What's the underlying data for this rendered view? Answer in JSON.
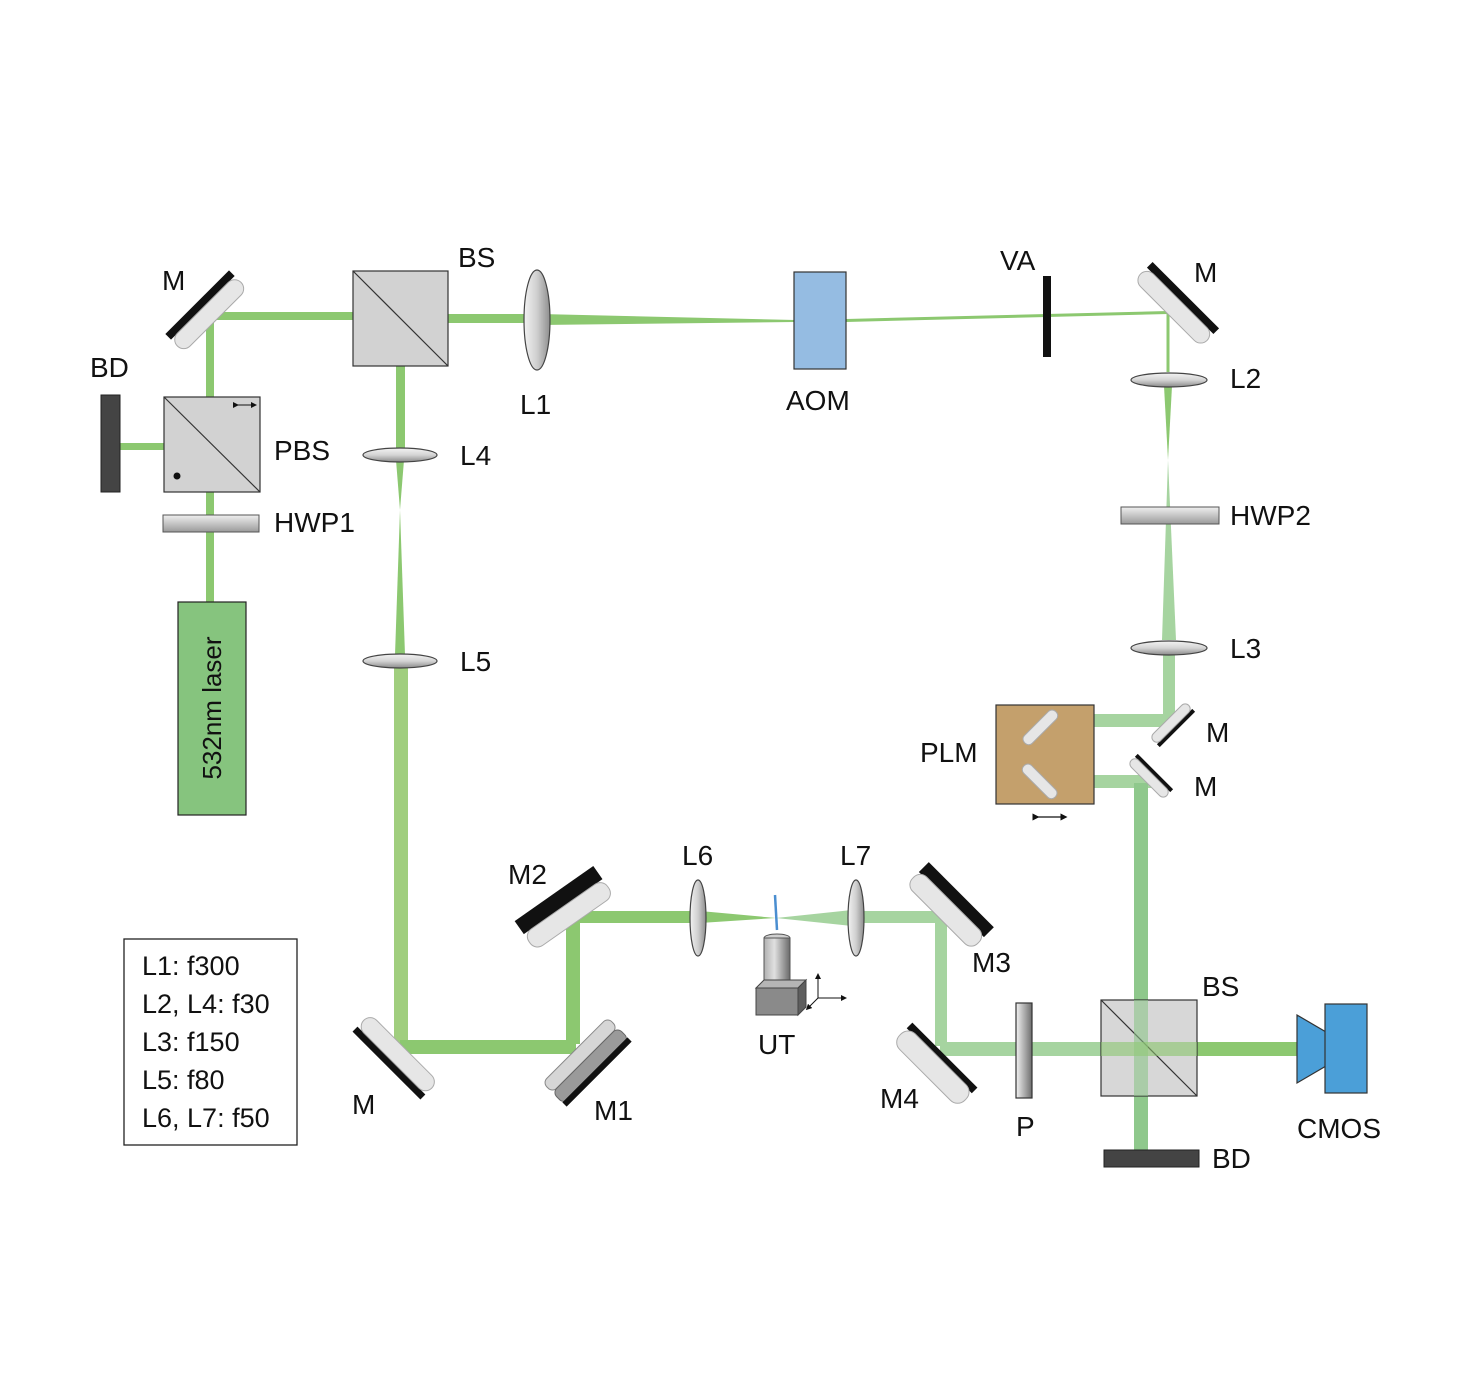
{
  "labels": {
    "m_top_left": "M",
    "bs_top": "BS",
    "l1": "L1",
    "aom": "AOM",
    "va": "VA",
    "m_top_right": "M",
    "l2": "L2",
    "hwp2": "HWP2",
    "l3": "L3",
    "plm": "PLM",
    "m_plm_upper": "M",
    "m_plm_lower": "M",
    "bd_left": "BD",
    "pbs": "PBS",
    "hwp1": "HWP1",
    "laser": "532nm laser",
    "l4": "L4",
    "l5": "L5",
    "m_bottom_left": "M",
    "m1": "M1",
    "m2": "M2",
    "l6": "L6",
    "l7": "L7",
    "ut": "UT",
    "m3": "M3",
    "m4": "M4",
    "p": "P",
    "bs_bottom": "BS",
    "cmos": "CMOS",
    "bd_bottom": "BD"
  },
  "legend": [
    "L1: f300",
    "L2, L4: f30",
    "L3: f150",
    "L5: f80",
    "L6, L7: f50"
  ],
  "colors": {
    "beam": "#8cc870",
    "beam_light": "#a6d4a0",
    "laser_body": "#86c47e",
    "aom": "#95bce2",
    "plm": "#c4a06c",
    "cmos": "#4b9fd8",
    "optic_gray": "#c8c8c8",
    "dark": "#111111"
  }
}
